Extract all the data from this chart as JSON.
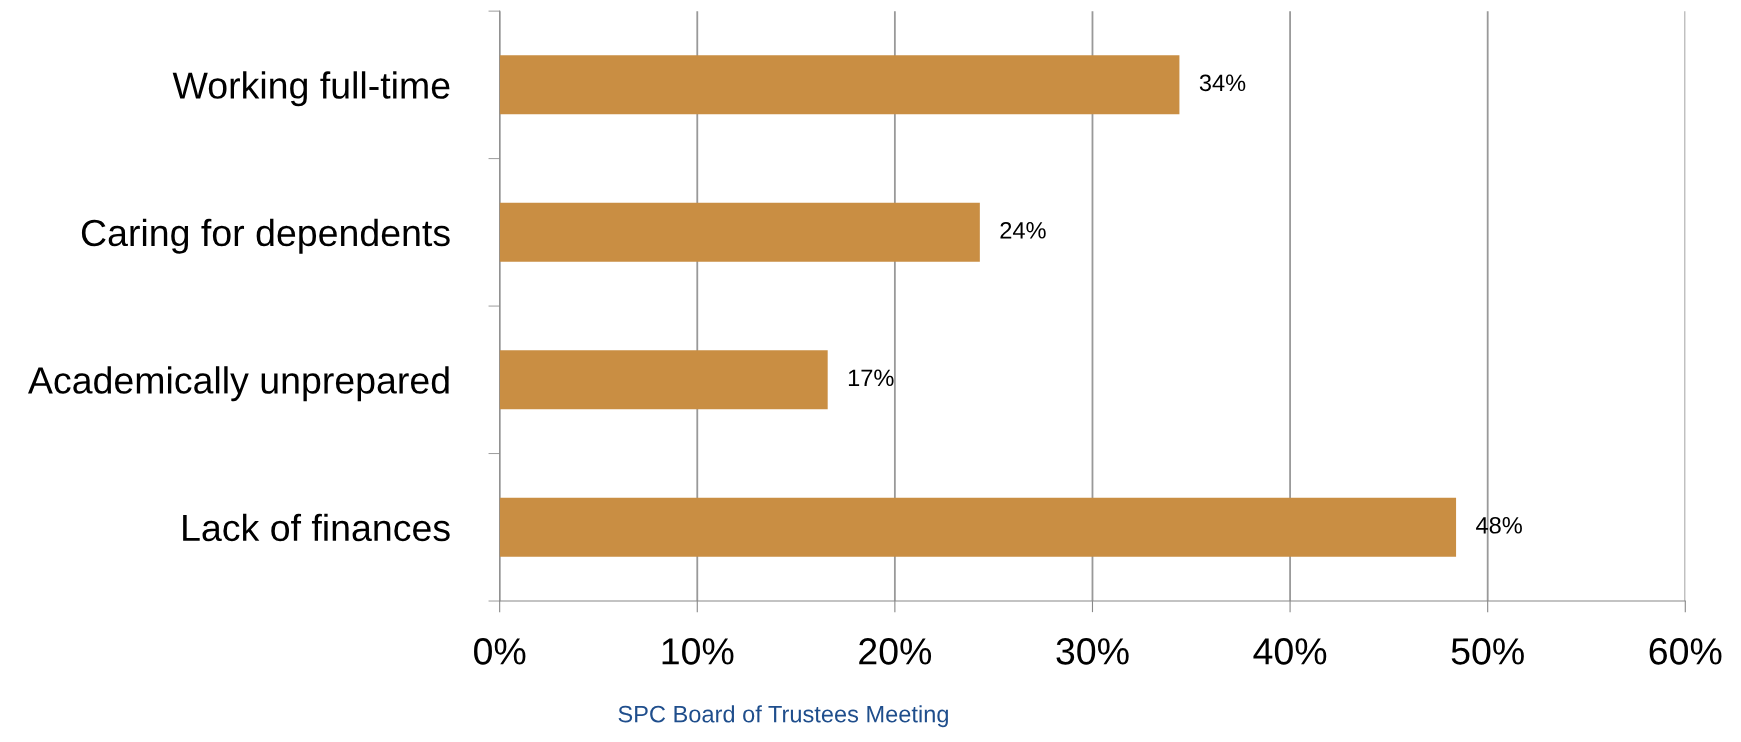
{
  "chart_data": {
    "type": "bar",
    "orientation": "horizontal",
    "categories": [
      "Working full-time",
      "Caring for dependents",
      "Academically unprepared",
      "Lack of finances"
    ],
    "values": [
      34.4,
      24.3,
      16.6,
      48.4
    ],
    "value_labels": [
      "34%",
      "24%",
      "17%",
      "48%"
    ],
    "color": "#c98e43",
    "xlim": [
      0,
      60
    ],
    "xticks": [
      {
        "value": 0,
        "label": "0%"
      },
      {
        "value": 10,
        "label": "10%"
      },
      {
        "value": 20,
        "label": "20%"
      },
      {
        "value": 30,
        "label": "30%"
      },
      {
        "value": 40,
        "label": "40%"
      },
      {
        "value": 50,
        "label": "50%"
      },
      {
        "value": 60,
        "label": "60%"
      }
    ],
    "grid": "x",
    "annotations": [
      "SPC Board of Trustees Meeting"
    ]
  }
}
